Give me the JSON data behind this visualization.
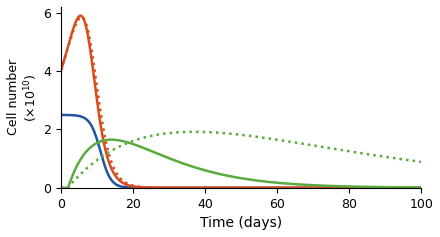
{
  "title": "",
  "xlabel": "Time (days)",
  "xlim": [
    0,
    100
  ],
  "ylim": [
    0,
    6.2
  ],
  "xticks": [
    0,
    20,
    40,
    60,
    80,
    100
  ],
  "yticks": [
    0,
    2,
    4,
    6
  ],
  "colors": {
    "blue": "#2155a0",
    "red": "#d94c1a",
    "green": "#5aaa3c"
  },
  "figsize": [
    4.4,
    2.37
  ],
  "dpi": 100
}
